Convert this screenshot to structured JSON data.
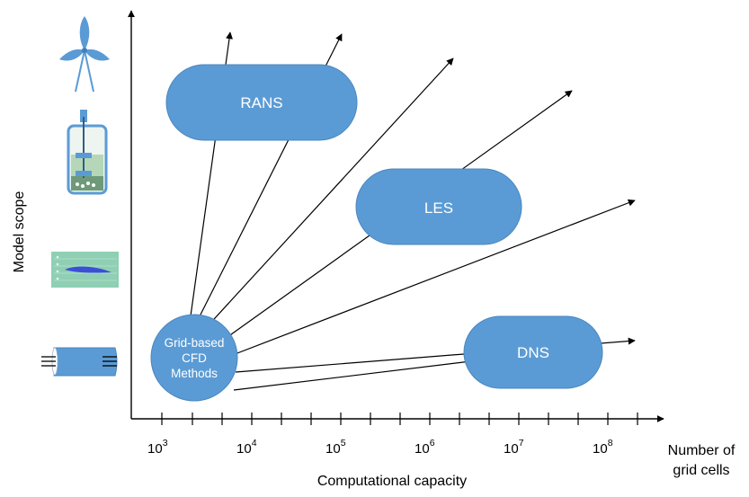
{
  "diagram": {
    "y_axis_title": "Model scope",
    "x_axis_title": "Computational capacity",
    "x_axis_unit_line1": "Number of",
    "x_axis_unit_line2": "grid cells",
    "ticks": [
      {
        "base": "10",
        "exp": "3"
      },
      {
        "base": "10",
        "exp": "4"
      },
      {
        "base": "10",
        "exp": "5"
      },
      {
        "base": "10",
        "exp": "6"
      },
      {
        "base": "10",
        "exp": "7"
      },
      {
        "base": "10",
        "exp": "8"
      }
    ],
    "hub": {
      "line1": "Grid-based",
      "line2": "CFD",
      "line3": "Methods"
    },
    "methods": [
      {
        "id": "rans",
        "label": "RANS"
      },
      {
        "id": "les",
        "label": "LES"
      },
      {
        "id": "dns",
        "label": "DNS"
      }
    ],
    "scope_icons": [
      "wind-turbine-icon",
      "bioreactor-icon",
      "airfoil-flow-icon",
      "pipe-flow-icon"
    ],
    "colors": {
      "pill_fill": "#5b9bd5",
      "pill_stroke": "#4a86bf",
      "axis": "#000000",
      "icon_blue": "#5b9bd5",
      "airfoil_bg": "#8fcfb4",
      "airfoil_shape": "#3b4fd6"
    }
  }
}
